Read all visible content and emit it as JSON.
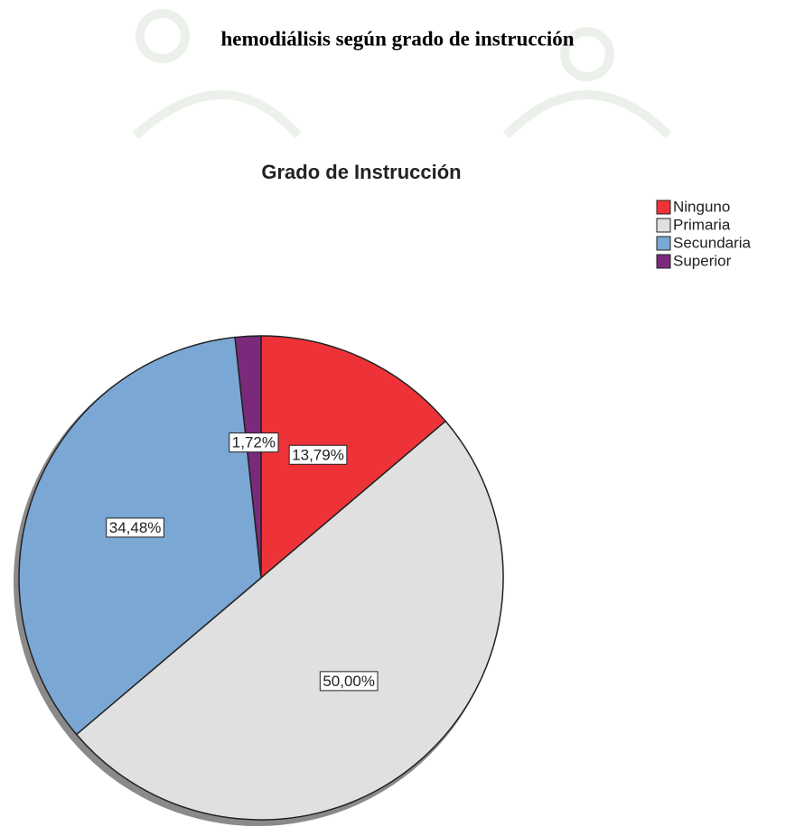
{
  "heading": "hemodiálisis según grado de instrucción",
  "chart_data": {
    "type": "pie",
    "title": "Grado de Instrucción",
    "categories": [
      "Ninguno",
      "Primaria",
      "Secundaria",
      "Superior"
    ],
    "values": [
      13.79,
      50,
      34.48,
      1.72
    ],
    "value_labels": [
      "13,79%",
      "50,00%",
      "34,48%",
      "1,72%"
    ],
    "colors": [
      "#ee3338",
      "#e0e0e0",
      "#7ba7d4",
      "#7b2a7b"
    ],
    "legend": "top-right"
  }
}
